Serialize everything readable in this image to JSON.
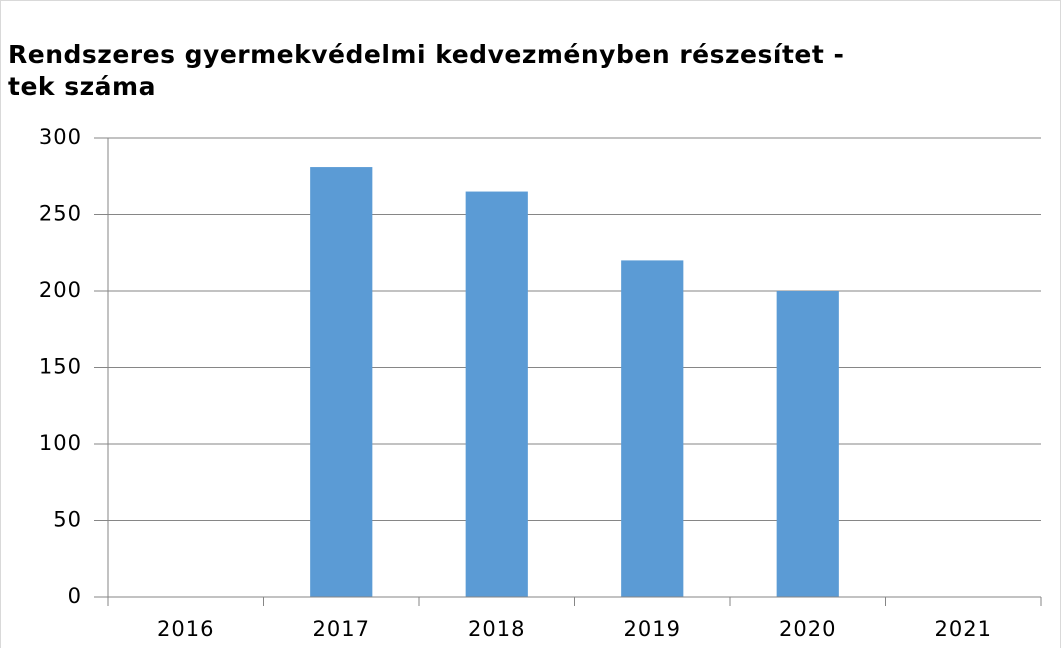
{
  "chart_data": {
    "type": "bar",
    "title": [
      "Rendszeres gyermekvédelmi kedvezményben részesítet -",
      "tek száma"
    ],
    "categories": [
      "2016",
      "2017",
      "2018",
      "2019",
      "2020",
      "2021"
    ],
    "values": [
      null,
      281,
      265,
      220,
      200,
      null
    ],
    "color": "#5b9bd5",
    "ylim": [
      0,
      300
    ],
    "yticks": [
      0,
      50,
      100,
      150,
      200,
      250,
      300
    ],
    "grid": true
  }
}
